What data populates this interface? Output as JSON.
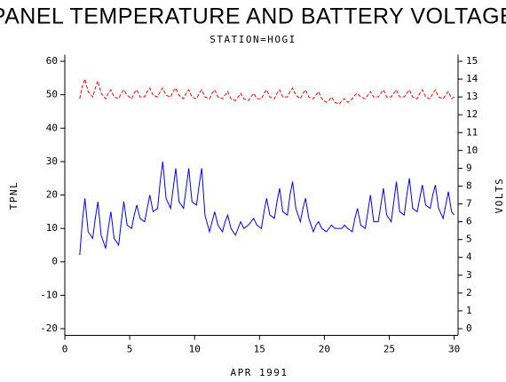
{
  "chart_data": {
    "type": "line",
    "title": "PANEL TEMPERATURE AND BATTERY VOLTAGE",
    "subtitle": "STATION=HOGI",
    "xlabel": "APR 1991",
    "ylabel": "TPNL",
    "y2label": "VOLTS",
    "xlim": [
      0,
      30.3
    ],
    "xticks": [
      0,
      5,
      10,
      15,
      20,
      25,
      30
    ],
    "ylim": [
      -22,
      62
    ],
    "yticks": [
      -20,
      -10,
      0,
      10,
      20,
      30,
      40,
      50,
      60
    ],
    "y2lim": [
      -0.375,
      15.375
    ],
    "y2ticks": [
      0,
      1,
      2,
      3,
      4,
      5,
      6,
      7,
      8,
      9,
      10,
      11,
      12,
      13,
      14,
      15
    ],
    "x": [
      1.15,
      1.35,
      1.55,
      1.8,
      2.15,
      2.35,
      2.55,
      2.8,
      3.15,
      3.35,
      3.55,
      3.8,
      4.15,
      4.35,
      4.55,
      4.8,
      5.15,
      5.35,
      5.55,
      5.8,
      6.15,
      6.35,
      6.55,
      6.8,
      7.15,
      7.35,
      7.55,
      7.8,
      8.15,
      8.35,
      8.55,
      8.8,
      9.15,
      9.35,
      9.55,
      9.8,
      10.15,
      10.35,
      10.55,
      10.8,
      11.15,
      11.35,
      11.55,
      11.8,
      12.15,
      12.35,
      12.55,
      12.8,
      13.15,
      13.35,
      13.55,
      13.8,
      14.15,
      14.35,
      14.55,
      14.8,
      15.15,
      15.35,
      15.55,
      15.8,
      16.15,
      16.35,
      16.55,
      16.8,
      17.15,
      17.35,
      17.55,
      17.8,
      18.15,
      18.35,
      18.55,
      18.8,
      19.15,
      19.35,
      19.55,
      19.8,
      20.15,
      20.35,
      20.55,
      20.8,
      21.15,
      21.35,
      21.55,
      21.8,
      22.15,
      22.35,
      22.55,
      22.8,
      23.15,
      23.35,
      23.55,
      23.8,
      24.15,
      24.35,
      24.55,
      24.8,
      25.15,
      25.35,
      25.55,
      25.8,
      26.15,
      26.35,
      26.55,
      26.8,
      27.15,
      27.35,
      27.55,
      27.8,
      28.15,
      28.35,
      28.55,
      28.8,
      29.15,
      29.35,
      29.55,
      29.8,
      30.0
    ],
    "series": [
      {
        "color": "#0000ff",
        "dash": false,
        "values": [
          2,
          12,
          19,
          9,
          7,
          13,
          18,
          8,
          4,
          10,
          15,
          7,
          5,
          12,
          18,
          11,
          10,
          14,
          17,
          13,
          12,
          16,
          20,
          15,
          16,
          24,
          30,
          19,
          16,
          22,
          28,
          18,
          16,
          22,
          28,
          18,
          17,
          23,
          28,
          14,
          9,
          12,
          15,
          11,
          9,
          12,
          14,
          10,
          8,
          10,
          12,
          10,
          11,
          12,
          13,
          11,
          10,
          15,
          19,
          14,
          13,
          18,
          22,
          15,
          14,
          20,
          24,
          16,
          12,
          16,
          19,
          13,
          9,
          11,
          12,
          10,
          9,
          10,
          11,
          10,
          10,
          10,
          11,
          10,
          9,
          13,
          16,
          11,
          10,
          15,
          20,
          12,
          12,
          17,
          22,
          14,
          12,
          18,
          24,
          15,
          14,
          20,
          25,
          16,
          15,
          19,
          23,
          17,
          16,
          20,
          23,
          16,
          13,
          17,
          21,
          15,
          14
        ]
      },
      {
        "color": "#ff0000",
        "dash": true,
        "axis": "y2",
        "values": [
          12.9,
          13.6,
          14.0,
          13.3,
          13.0,
          13.5,
          13.9,
          13.2,
          12.9,
          13.2,
          13.4,
          13.0,
          12.9,
          13.2,
          13.4,
          13.1,
          12.9,
          13.2,
          13.4,
          13.0,
          13.0,
          13.3,
          13.5,
          13.1,
          13.0,
          13.3,
          13.5,
          13.1,
          13.0,
          13.3,
          13.5,
          13.1,
          12.9,
          13.2,
          13.4,
          13.0,
          12.9,
          13.2,
          13.4,
          13.0,
          12.9,
          13.2,
          13.4,
          13.0,
          12.9,
          13.1,
          13.3,
          12.9,
          12.8,
          13.0,
          13.2,
          12.9,
          12.8,
          13.0,
          13.2,
          12.9,
          12.9,
          13.2,
          13.4,
          13.0,
          12.9,
          13.2,
          13.4,
          13.0,
          13.0,
          13.3,
          13.5,
          13.1,
          12.9,
          13.2,
          13.4,
          13.0,
          12.9,
          13.1,
          13.3,
          12.9,
          12.7,
          12.8,
          13.0,
          12.7,
          12.6,
          12.8,
          12.9,
          12.7,
          12.9,
          13.1,
          13.2,
          13.0,
          12.9,
          13.1,
          13.3,
          13.0,
          13.0,
          13.2,
          13.4,
          13.0,
          13.0,
          13.2,
          13.4,
          13.0,
          13.0,
          13.2,
          13.4,
          13.0,
          12.9,
          13.2,
          13.4,
          13.0,
          12.9,
          13.2,
          13.4,
          13.0,
          12.9,
          13.1,
          13.3,
          12.9,
          13.0
        ]
      }
    ]
  }
}
